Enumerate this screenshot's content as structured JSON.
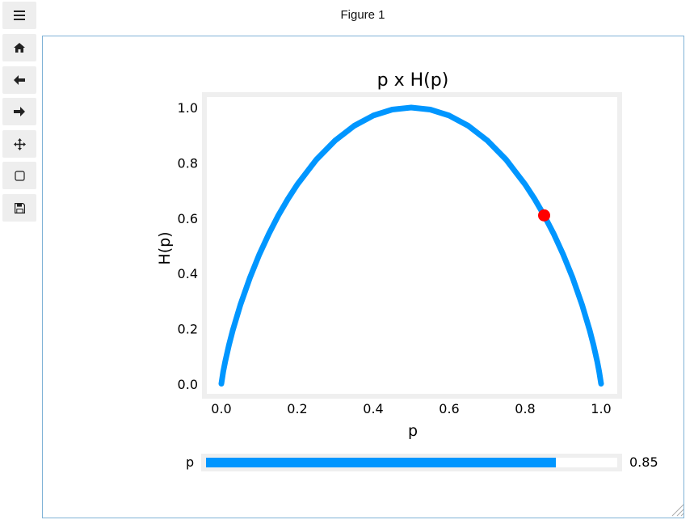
{
  "window": {
    "title": "Figure 1"
  },
  "toolbar": {
    "buttons": [
      {
        "name": "menu-button",
        "icon": "hamburger-menu-icon"
      },
      {
        "name": "home-button",
        "icon": "home-icon"
      },
      {
        "name": "back-button",
        "icon": "arrow-left-icon"
      },
      {
        "name": "forward-button",
        "icon": "arrow-right-icon"
      },
      {
        "name": "pan-button",
        "icon": "move-arrows-icon"
      },
      {
        "name": "zoom-rect-button",
        "icon": "rectangle-icon"
      },
      {
        "name": "save-button",
        "icon": "floppy-disk-icon"
      }
    ]
  },
  "colors": {
    "curve": "#0096ff",
    "marker": "#ff0000",
    "axes_border": "#efefef",
    "frame": "#7fb2d6"
  },
  "chart_data": {
    "type": "line",
    "title": "p x H(p)",
    "xlabel": "p",
    "ylabel": "H(p)",
    "xlim": [
      0.0,
      1.0
    ],
    "ylim": [
      0.0,
      1.0
    ],
    "xticks": [
      "0.0",
      "0.2",
      "0.4",
      "0.6",
      "0.8",
      "1.0"
    ],
    "yticks": [
      "0.0",
      "0.2",
      "0.4",
      "0.6",
      "0.8",
      "1.0"
    ],
    "series": [
      {
        "x": [
          0.0001,
          0.005,
          0.01,
          0.02,
          0.03,
          0.05,
          0.075,
          0.1,
          0.125,
          0.15,
          0.175,
          0.2,
          0.25,
          0.3,
          0.35,
          0.4,
          0.45,
          0.5,
          0.55,
          0.6,
          0.65,
          0.7,
          0.75,
          0.8,
          0.825,
          0.85,
          0.875,
          0.9,
          0.925,
          0.95,
          0.97,
          0.98,
          0.99,
          0.995,
          0.9999
        ],
        "y": [
          0.0015,
          0.0454,
          0.0808,
          0.1414,
          0.1944,
          0.2864,
          0.3843,
          0.469,
          0.5436,
          0.6098,
          0.669,
          0.7219,
          0.8113,
          0.8813,
          0.9341,
          0.971,
          0.9928,
          1.0,
          0.9928,
          0.971,
          0.9341,
          0.8813,
          0.8113,
          0.7219,
          0.669,
          0.6098,
          0.5436,
          0.469,
          0.3843,
          0.2864,
          0.1944,
          0.1414,
          0.0808,
          0.0454,
          0.0015
        ]
      }
    ],
    "marker": {
      "x": 0.85,
      "y": 0.61
    },
    "grid": false
  },
  "slider": {
    "label": "p",
    "value": 0.85,
    "value_text": "0.85",
    "min": 0.0,
    "max": 1.0
  }
}
